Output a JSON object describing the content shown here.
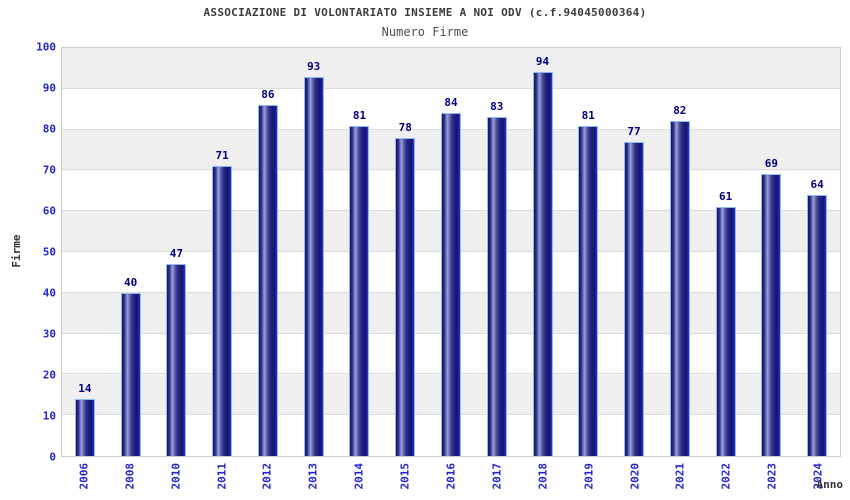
{
  "chart_data": {
    "type": "bar",
    "title": "ASSOCIAZIONE DI VOLONTARIATO INSIEME A NOI ODV (c.f.94045000364)",
    "subtitle": "Numero Firme",
    "xlabel": "Anno",
    "ylabel": "Firme",
    "categories": [
      "2006",
      "2008",
      "2010",
      "2011",
      "2012",
      "2013",
      "2014",
      "2015",
      "2016",
      "2017",
      "2018",
      "2019",
      "2020",
      "2021",
      "2022",
      "2023",
      "2024"
    ],
    "values": [
      14,
      40,
      47,
      71,
      86,
      93,
      81,
      78,
      84,
      83,
      94,
      81,
      77,
      82,
      61,
      69,
      64
    ],
    "ylim": [
      0,
      100
    ],
    "ytick_step": 10,
    "ytick_labels": [
      "0",
      "10",
      "20",
      "30",
      "40",
      "50",
      "60",
      "70",
      "80",
      "90",
      "100"
    ],
    "grid": true,
    "legend_position": "none",
    "colors": {
      "bar_dark": "#16166e",
      "bar_highlight": "#9aa3d6",
      "bar_right_edge": "#2d2de0",
      "bar_border": "#8fbcec",
      "tick_label_blue": "#2525cc",
      "value_label_navy": "#00007d",
      "band_gray": "#efefef",
      "band_white": "#ffffff",
      "grid_line": "#dcdcdc",
      "plot_border": "#cccccc",
      "title_color": "#3c3c3c",
      "subtitle_color": "#4f4f4f",
      "axis_title_color": "#333333"
    }
  }
}
